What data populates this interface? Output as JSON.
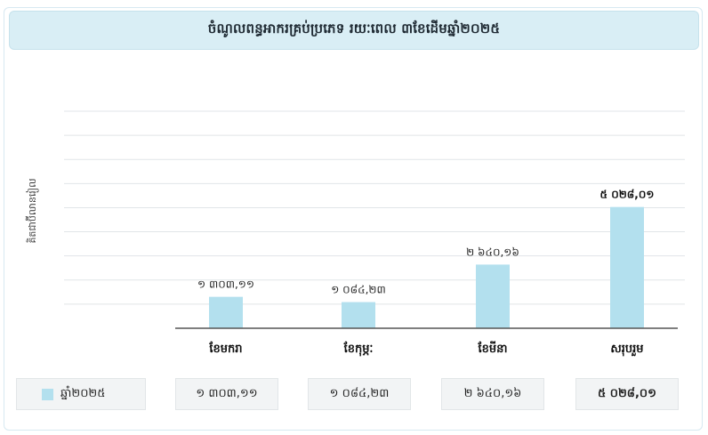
{
  "title": "ចំណូលពន្ធអាករគ្រប់ប្រភេទ រយៈពេល ៣ខែដើមឆ្នាំ២០២៥",
  "colors": {
    "bar": "#b3e0ee",
    "grid": "#e1e5e8",
    "axis": "#555555"
  },
  "chart_data": {
    "type": "bar",
    "title": "ចំណូលពន្ធអាករគ្រប់ប្រភេទ រយៈពេល ៣ខែដើមឆ្នាំ២០២៥",
    "ylabel": "គិតជាប៊ីលានរៀល",
    "xlabel": "",
    "categories": [
      "ខែមករា",
      "ខែកុម្ភៈ",
      "ខែមីនា",
      "សរុបរួម"
    ],
    "series": [
      {
        "name": "ឆ្នាំ២០២៥",
        "values": [
          1303.11,
          1084.23,
          2640.16,
          5028.01
        ],
        "labels": [
          "១ ៣០៣,១១",
          "១ ០៨៤,២៣",
          "២ ៦៤០,១៦",
          "៥ ០២៨,០១"
        ]
      }
    ],
    "ylim": [
      0,
      9000
    ],
    "grid": true,
    "legend": "bottom-left table"
  }
}
